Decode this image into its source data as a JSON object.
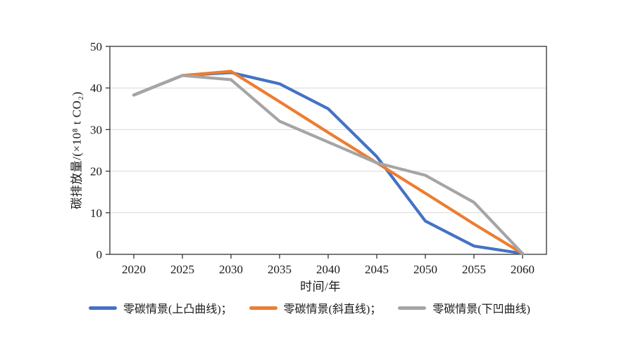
{
  "chart_data": {
    "type": "line",
    "x": [
      "2020",
      "2025",
      "2030",
      "2035",
      "2040",
      "2045",
      "2050",
      "2055",
      "2060"
    ],
    "series": [
      {
        "name": "零碳情景(上凸曲线)",
        "legend_label": "零碳情景(上凸曲线)；",
        "color": "#4472C4",
        "values": [
          38.3,
          43,
          43.7,
          41,
          35,
          23.5,
          8,
          2,
          0.2
        ]
      },
      {
        "name": "零碳情景(斜直线)",
        "legend_label": "零碳情景(斜直线)；",
        "color": "#ED7D31",
        "values": [
          38.3,
          43,
          44,
          36.7,
          29.3,
          22,
          14.7,
          7.3,
          0.2
        ]
      },
      {
        "name": "零碳情景(下凹曲线)",
        "legend_label": "零碳情景(下凹曲线)",
        "color": "#A5A5A5",
        "values": [
          38.3,
          43,
          42,
          32,
          27,
          22,
          19,
          12.5,
          0.2
        ]
      }
    ],
    "title": "",
    "xlabel": "时间/年",
    "ylabel": "碳排放量/(×10⁸ t CO₂)",
    "ylim": [
      0,
      50
    ],
    "yticks": [
      0,
      10,
      20,
      30,
      40,
      50
    ],
    "grid": "horizontal",
    "legend_position": "bottom"
  },
  "style": {
    "axis_color": "#333333",
    "grid_color": "#d9d9d9",
    "tick_text_color": "#1a1a1a",
    "background": "#ffffff",
    "line_width": 4.2
  }
}
